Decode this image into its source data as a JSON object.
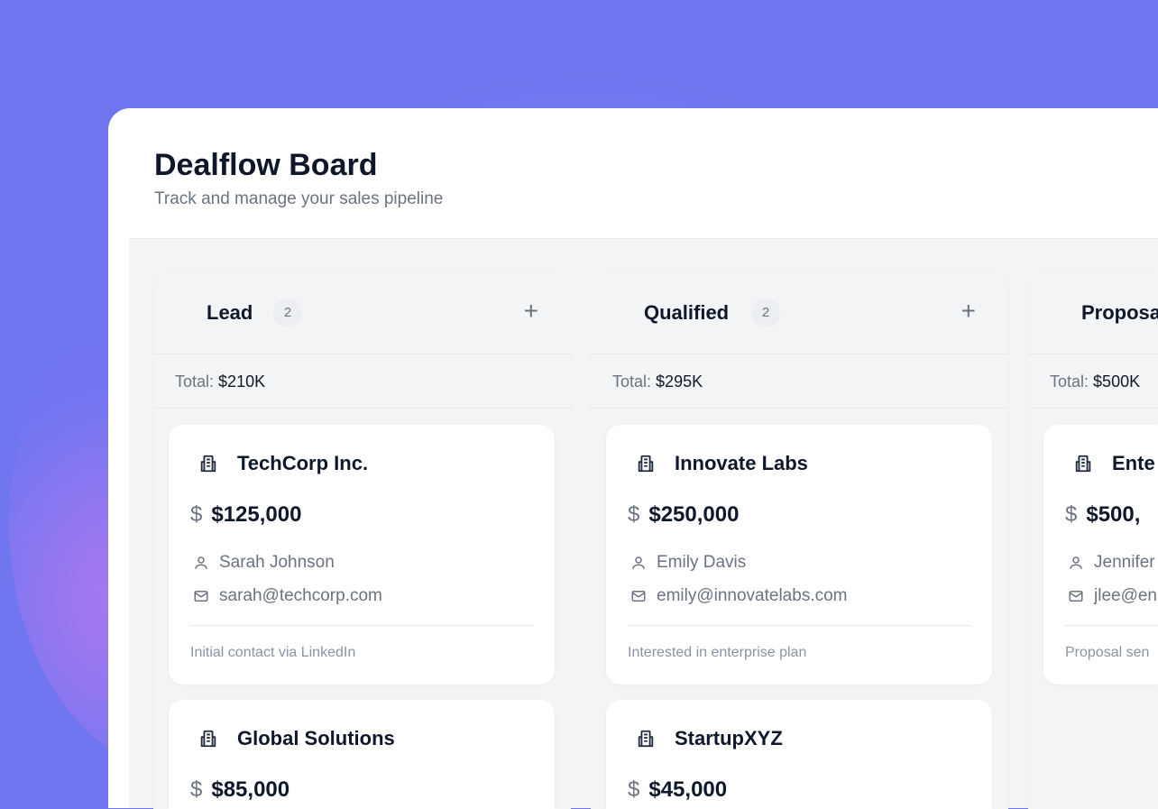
{
  "header": {
    "title": "Dealflow Board",
    "subtitle": "Track and manage your sales pipeline"
  },
  "colors": {
    "background": "#6f76ef",
    "text": "#0f172a",
    "muted": "#6b7280"
  },
  "columns": [
    {
      "name": "Lead",
      "count": "2",
      "total_label": "Total:",
      "total": "$210K",
      "add_icon": "plus-icon",
      "cards": [
        {
          "company": "TechCorp Inc.",
          "amount": "$125,000",
          "contact": "Sarah Johnson",
          "email": "sarah@techcorp.com",
          "note": "Initial contact via LinkedIn"
        },
        {
          "company": "Global Solutions",
          "amount": "$85,000"
        }
      ]
    },
    {
      "name": "Qualified",
      "count": "2",
      "total_label": "Total:",
      "total": "$295K",
      "add_icon": "plus-icon",
      "cards": [
        {
          "company": "Innovate Labs",
          "amount": "$250,000",
          "contact": "Emily Davis",
          "email": "emily@innovatelabs.com",
          "note": "Interested in enterprise plan"
        },
        {
          "company": "StartupXYZ",
          "amount": "$45,000"
        }
      ]
    },
    {
      "name": "Proposa",
      "total_label": "Total:",
      "total": "$500K",
      "cards": [
        {
          "company": "Ente",
          "amount": "$500,",
          "contact": "Jennifer",
          "email": "jlee@en",
          "note": "Proposal sen"
        }
      ]
    }
  ]
}
